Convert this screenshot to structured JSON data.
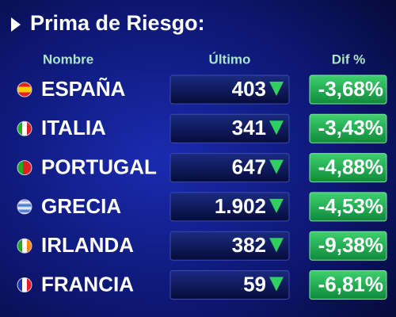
{
  "header": {
    "title": "Prima de Riesgo:"
  },
  "table": {
    "columns": [
      "Nombre",
      "Último",
      "Dif %"
    ],
    "rows": [
      [
        "ESPAÑA",
        "403",
        "-3,68%"
      ],
      [
        "ITALIA",
        "341",
        "-3,43%"
      ],
      [
        "PORTUGAL",
        "647",
        "-4,88%"
      ],
      [
        "GRECIA",
        "1.902",
        "-4,53%"
      ],
      [
        "IRLANDA",
        "382",
        "-9,38%"
      ],
      [
        "FRANCIA",
        "59",
        "-6,81%"
      ]
    ]
  }
}
